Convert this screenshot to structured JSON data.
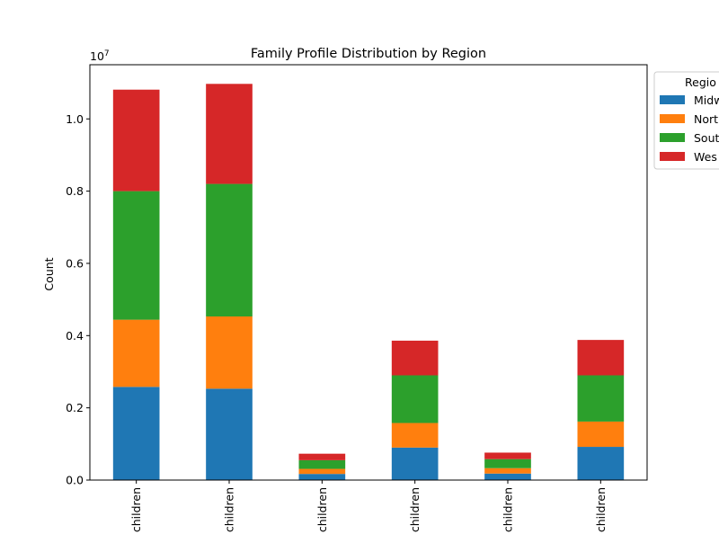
{
  "chart_data": {
    "type": "bar",
    "stacked": true,
    "title": "Family Profile Distribution by Region",
    "xlabel": "",
    "ylabel": "Count",
    "y_offset_label": "1e7",
    "ylim": [
      0,
      1.15
    ],
    "y_ticks": [
      0.0,
      0.2,
      0.4,
      0.6,
      0.8,
      1.0
    ],
    "y_tick_labels": [
      "0.0",
      "0.2",
      "0.4",
      "0.6",
      "0.8",
      "1.0"
    ],
    "categories": [
      "children",
      "children",
      "children",
      "children",
      "children",
      "children"
    ],
    "series": [
      {
        "name": "Midw",
        "color": "#1f77b4",
        "values": [
          0.258,
          0.253,
          0.017,
          0.09,
          0.018,
          0.092
        ]
      },
      {
        "name": "Nort",
        "color": "#ff7f0e",
        "values": [
          0.186,
          0.2,
          0.014,
          0.068,
          0.015,
          0.07
        ]
      },
      {
        "name": "Sout",
        "color": "#2ca02c",
        "values": [
          0.356,
          0.367,
          0.024,
          0.132,
          0.025,
          0.128
        ]
      },
      {
        "name": "Wes",
        "color": "#d62728",
        "values": [
          0.281,
          0.277,
          0.018,
          0.096,
          0.018,
          0.098
        ]
      }
    ],
    "legend": {
      "title": "Regio",
      "placement": "outside-top-right"
    },
    "grid": false
  }
}
